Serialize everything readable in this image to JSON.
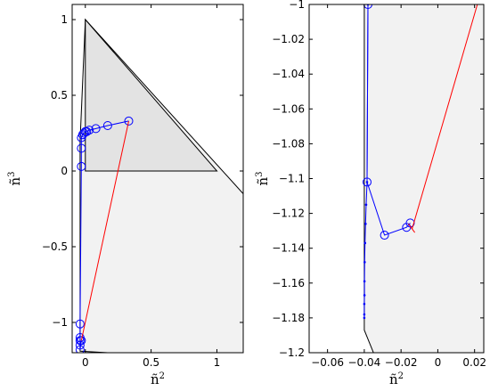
{
  "chart_data": [
    {
      "type": "line",
      "xlabel_base": "ñ",
      "xlabel_sup": "2",
      "ylabel_base": "ñ",
      "ylabel_sup": "3",
      "xlim": [
        -0.1,
        1.2
      ],
      "ylim": [
        -1.2,
        1.1
      ],
      "xticks": [
        0,
        0.5,
        1
      ],
      "xtick_labels": [
        "0",
        "0.5",
        "1"
      ],
      "yticks": [
        -1,
        -0.5,
        0,
        0.5,
        1
      ],
      "ytick_labels": [
        "−1",
        "−0.5",
        "0",
        "0.5",
        "1"
      ],
      "grid": false,
      "region_outer": [
        [
          0,
          1
        ],
        [
          1.2,
          -0.15
        ],
        [
          1.2,
          -1.2
        ],
        [
          0.17,
          -1.2
        ],
        [
          -0.04,
          -1.19
        ],
        [
          -0.04,
          0.2
        ]
      ],
      "region_inner": [
        [
          0,
          1
        ],
        [
          1,
          0
        ],
        [
          0,
          0
        ]
      ],
      "series": [
        {
          "color": "#0000ff",
          "marker": "circle",
          "x": [
            0.33,
            0.17,
            0.08,
            0.03,
            0.01,
            0.0,
            -0.01,
            -0.02,
            -0.03,
            -0.03,
            -0.03,
            -0.04,
            -0.04,
            -0.04,
            -0.04,
            -0.04,
            -0.03
          ],
          "y": [
            0.33,
            0.3,
            0.28,
            0.27,
            0.26,
            0.26,
            0.25,
            0.24,
            0.22,
            0.15,
            0.03,
            -1.01,
            -1.1,
            -1.12,
            -1.15,
            -1.18,
            -1.12
          ]
        },
        {
          "color": "#ff0000",
          "marker": "none",
          "x": [
            0.33,
            -0.03
          ],
          "y": [
            0.33,
            -1.12
          ]
        }
      ]
    },
    {
      "type": "line",
      "xlabel_base": "ñ",
      "xlabel_sup": "2",
      "ylabel_base": "ñ",
      "ylabel_sup": "3",
      "xlim": [
        -0.07,
        0.025
      ],
      "ylim": [
        -1.2,
        -1.0
      ],
      "xticks": [
        -0.06,
        -0.04,
        -0.02,
        0,
        0.02
      ],
      "xtick_labels": [
        "−0.06",
        "−0.04",
        "−0.02",
        "0",
        "0.02"
      ],
      "yticks": [
        -1.2,
        -1.18,
        -1.16,
        -1.14,
        -1.12,
        -1.1,
        -1.08,
        -1.06,
        -1.04,
        -1.02,
        -1
      ],
      "ytick_labels": [
        "−1.2",
        "−1.18",
        "−1.16",
        "−1.14",
        "−1.12",
        "−1.1",
        "−1.08",
        "−1.06",
        "−1.04",
        "−1.02",
        "−1"
      ],
      "grid": false,
      "region_outer": [
        [
          -0.039,
          -1.0
        ],
        [
          0.025,
          -1.0
        ],
        [
          0.025,
          -1.2
        ],
        [
          -0.035,
          -1.2
        ],
        [
          -0.04,
          -1.187
        ],
        [
          -0.04,
          -1.0
        ]
      ],
      "region_inner": [],
      "series": [
        {
          "color": "#0000ff",
          "marker": "circle",
          "x": [
            -0.038,
            -0.0385,
            -0.029,
            -0.017,
            -0.015
          ],
          "y": [
            -1.0,
            -1.102,
            -1.1325,
            -1.128,
            -1.1255
          ]
        },
        {
          "color": "#0000ff",
          "marker": "dot",
          "x": [
            -0.038,
            -0.0385,
            -0.039,
            -0.0393,
            -0.0396,
            -0.0398,
            -0.0399,
            -0.0399,
            -0.04,
            -0.04,
            -0.04
          ],
          "y": [
            -1.0,
            -1.102,
            -1.115,
            -1.126,
            -1.137,
            -1.148,
            -1.159,
            -1.167,
            -1.172,
            -1.178,
            -1.18
          ]
        },
        {
          "color": "#ff0000",
          "marker": "none",
          "x": [
            0.0215,
            -0.014
          ],
          "y": [
            -1.0,
            -1.129
          ]
        },
        {
          "color": "#ff0000",
          "marker": "none",
          "x": [
            -0.016,
            -0.0125
          ],
          "y": [
            -1.126,
            -1.131
          ]
        }
      ]
    }
  ]
}
